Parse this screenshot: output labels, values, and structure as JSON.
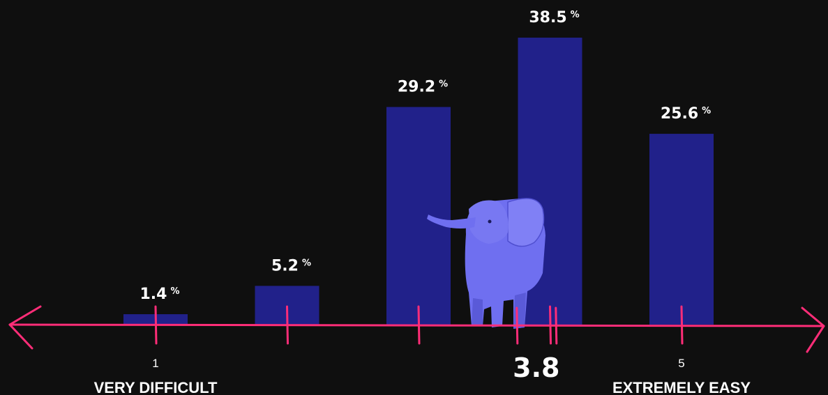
{
  "chart_data": {
    "type": "bar",
    "categories": [
      "1",
      "2",
      "3",
      "4",
      "5"
    ],
    "values": [
      1.4,
      5.2,
      29.2,
      38.5,
      25.6
    ],
    "value_labels": [
      "1.4",
      "5.2",
      "29.2",
      "38.5",
      "25.6"
    ],
    "unit": "%",
    "ylim": [
      0,
      40
    ],
    "tick_labels": [
      {
        "category": "1",
        "text": "1"
      },
      {
        "category": "5",
        "text": "5"
      }
    ],
    "end_labels": {
      "left": "VERY DIFFICULT",
      "right": "EXTREMELY EASY"
    },
    "mean": {
      "value": 3.8,
      "label": "3.8"
    },
    "grid": false
  },
  "colors": {
    "background": "#0f0f0f",
    "bar": "#21218a",
    "axis": "#ff2d78",
    "text": "#ffffff",
    "elephant": "#6f6ff0"
  },
  "icons": {
    "mascot": "elephant-icon"
  }
}
